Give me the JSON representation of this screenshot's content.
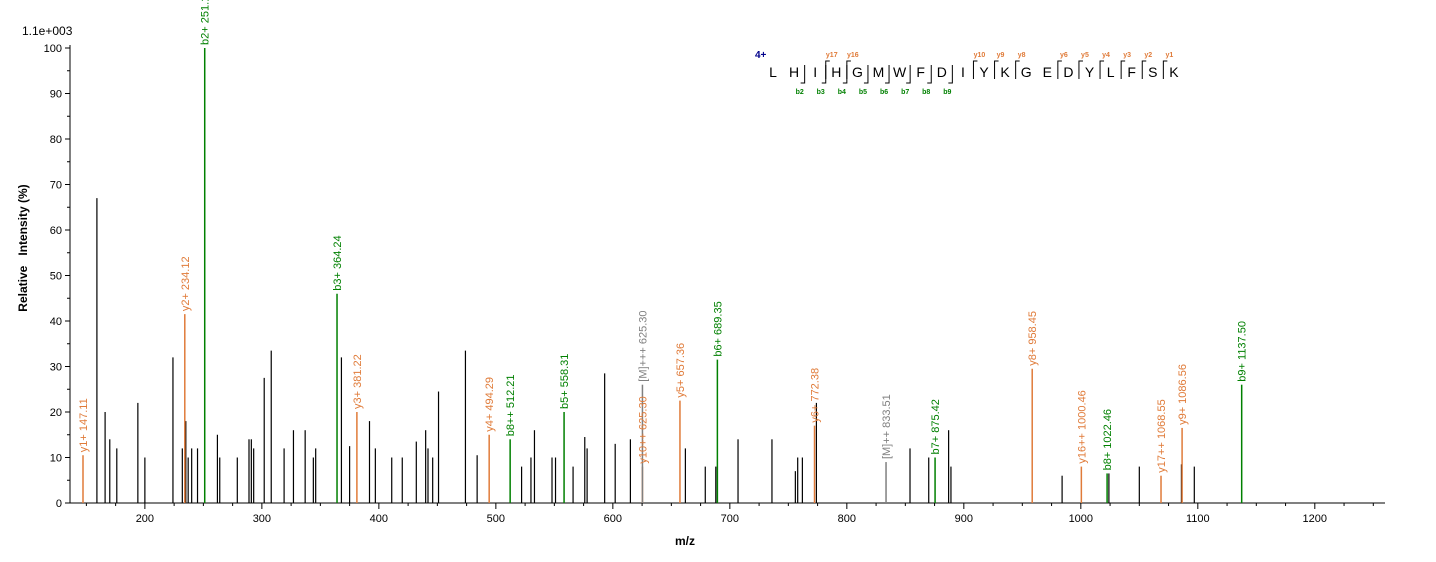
{
  "chart_data": {
    "type": "bar",
    "scale_label": "1.1e+003",
    "xlabel": "m/z",
    "ylabel": "Relative   Intensity (%)",
    "xlim": [
      136,
      1260
    ],
    "ylim": [
      0,
      100
    ],
    "x_ticks": [
      200,
      300,
      400,
      500,
      600,
      700,
      800,
      900,
      1000,
      1100,
      1200
    ],
    "y_ticks": [
      0,
      10,
      20,
      30,
      40,
      50,
      60,
      70,
      80,
      90,
      100
    ],
    "colors": {
      "b": "#008000",
      "y": "#e07b39",
      "other": "#808080",
      "unassigned": "#000000"
    },
    "annotated_peaks": [
      {
        "mz": 147.11,
        "intensity": 10.5,
        "label": "y1+ 147.11",
        "ion": "y"
      },
      {
        "mz": 234.12,
        "intensity": 41.5,
        "label": "y2+ 234.12",
        "ion": "y"
      },
      {
        "mz": 251.15,
        "intensity": 100,
        "label": "b2+ 251.15",
        "ion": "b"
      },
      {
        "mz": 364.24,
        "intensity": 46,
        "label": "b3+ 364.24",
        "ion": "b"
      },
      {
        "mz": 381.22,
        "intensity": 20,
        "label": "y3+ 381.22",
        "ion": "y"
      },
      {
        "mz": 494.29,
        "intensity": 15,
        "label": "y4+ 494.29",
        "ion": "y"
      },
      {
        "mz": 512.21,
        "intensity": 14,
        "label": "b8++ 512.21",
        "ion": "b"
      },
      {
        "mz": 558.31,
        "intensity": 20,
        "label": "b5+ 558.31",
        "ion": "b"
      },
      {
        "mz": 625.3,
        "intensity": 8,
        "label": "y10++ 625.30",
        "ion": "y"
      },
      {
        "mz": 625.3,
        "intensity": 26,
        "label": "[M]+++ 625.30",
        "ion": "other"
      },
      {
        "mz": 657.36,
        "intensity": 22.5,
        "label": "y5+ 657.36",
        "ion": "y"
      },
      {
        "mz": 689.35,
        "intensity": 31.5,
        "label": "b6+ 689.35",
        "ion": "b"
      },
      {
        "mz": 772.38,
        "intensity": 17,
        "label": "y6+ 772.38",
        "ion": "y"
      },
      {
        "mz": 833.51,
        "intensity": 9,
        "label": "[M]++ 833.51",
        "ion": "other"
      },
      {
        "mz": 875.42,
        "intensity": 10,
        "label": "b7+ 875.42",
        "ion": "b"
      },
      {
        "mz": 958.45,
        "intensity": 29.5,
        "label": "y8+ 958.45",
        "ion": "y"
      },
      {
        "mz": 1000.46,
        "intensity": 8,
        "label": "y16++ 1000.46",
        "ion": "y"
      },
      {
        "mz": 1022.46,
        "intensity": 6.5,
        "label": "b8+ 1022.46",
        "ion": "b"
      },
      {
        "mz": 1068.55,
        "intensity": 6,
        "label": "y17++ 1068.55",
        "ion": "y"
      },
      {
        "mz": 1086.56,
        "intensity": 16.5,
        "label": "y9+ 1086.56",
        "ion": "y"
      },
      {
        "mz": 1137.5,
        "intensity": 26,
        "label": "b9+ 1137.50",
        "ion": "b"
      }
    ],
    "unassigned_peaks": [
      {
        "mz": 159,
        "intensity": 67
      },
      {
        "mz": 166,
        "intensity": 20
      },
      {
        "mz": 170,
        "intensity": 14
      },
      {
        "mz": 176,
        "intensity": 12
      },
      {
        "mz": 194,
        "intensity": 22
      },
      {
        "mz": 200,
        "intensity": 10
      },
      {
        "mz": 224,
        "intensity": 32
      },
      {
        "mz": 232,
        "intensity": 12
      },
      {
        "mz": 235,
        "intensity": 18
      },
      {
        "mz": 237,
        "intensity": 10
      },
      {
        "mz": 240,
        "intensity": 12
      },
      {
        "mz": 245,
        "intensity": 12
      },
      {
        "mz": 262,
        "intensity": 15
      },
      {
        "mz": 264,
        "intensity": 10
      },
      {
        "mz": 279,
        "intensity": 10
      },
      {
        "mz": 289,
        "intensity": 14
      },
      {
        "mz": 291,
        "intensity": 14
      },
      {
        "mz": 293,
        "intensity": 12
      },
      {
        "mz": 302,
        "intensity": 27.5
      },
      {
        "mz": 308,
        "intensity": 33.5
      },
      {
        "mz": 319,
        "intensity": 12
      },
      {
        "mz": 327,
        "intensity": 16
      },
      {
        "mz": 337,
        "intensity": 16
      },
      {
        "mz": 344,
        "intensity": 10
      },
      {
        "mz": 346,
        "intensity": 12
      },
      {
        "mz": 368,
        "intensity": 32
      },
      {
        "mz": 375,
        "intensity": 12.5
      },
      {
        "mz": 392,
        "intensity": 18
      },
      {
        "mz": 397,
        "intensity": 12
      },
      {
        "mz": 411,
        "intensity": 10
      },
      {
        "mz": 420,
        "intensity": 10
      },
      {
        "mz": 432,
        "intensity": 13.5
      },
      {
        "mz": 440,
        "intensity": 16
      },
      {
        "mz": 442,
        "intensity": 12
      },
      {
        "mz": 446,
        "intensity": 10
      },
      {
        "mz": 451,
        "intensity": 24.5
      },
      {
        "mz": 474,
        "intensity": 33.5
      },
      {
        "mz": 484,
        "intensity": 10.5
      },
      {
        "mz": 522,
        "intensity": 8
      },
      {
        "mz": 530,
        "intensity": 10
      },
      {
        "mz": 533,
        "intensity": 16
      },
      {
        "mz": 548,
        "intensity": 10
      },
      {
        "mz": 551,
        "intensity": 10
      },
      {
        "mz": 566,
        "intensity": 8
      },
      {
        "mz": 576,
        "intensity": 14.5
      },
      {
        "mz": 578,
        "intensity": 12
      },
      {
        "mz": 593,
        "intensity": 28.5
      },
      {
        "mz": 602,
        "intensity": 13
      },
      {
        "mz": 615,
        "intensity": 14
      },
      {
        "mz": 662,
        "intensity": 12
      },
      {
        "mz": 679,
        "intensity": 8
      },
      {
        "mz": 688,
        "intensity": 8
      },
      {
        "mz": 707,
        "intensity": 14
      },
      {
        "mz": 736,
        "intensity": 14
      },
      {
        "mz": 756,
        "intensity": 7
      },
      {
        "mz": 758,
        "intensity": 10
      },
      {
        "mz": 762,
        "intensity": 10
      },
      {
        "mz": 774,
        "intensity": 22
      },
      {
        "mz": 854,
        "intensity": 12
      },
      {
        "mz": 870,
        "intensity": 10
      },
      {
        "mz": 887,
        "intensity": 16
      },
      {
        "mz": 889,
        "intensity": 8
      },
      {
        "mz": 984,
        "intensity": 6
      },
      {
        "mz": 1024,
        "intensity": 6.5
      },
      {
        "mz": 1050,
        "intensity": 8
      },
      {
        "mz": 1086,
        "intensity": 8.5
      },
      {
        "mz": 1097,
        "intensity": 8
      }
    ],
    "sequence": {
      "charge": "4+",
      "residues": [
        "L",
        "H",
        "I",
        "H",
        "G",
        "M",
        "W",
        "F",
        "D",
        "I",
        "Y",
        "K",
        "G",
        "E",
        "D",
        "Y",
        "L",
        "F",
        "S",
        "K"
      ],
      "b_ions": [
        {
          "label": "b2",
          "after": 1
        },
        {
          "label": "b3",
          "after": 2
        },
        {
          "label": "b4",
          "after": 3
        },
        {
          "label": "b5",
          "after": 4
        },
        {
          "label": "b6",
          "after": 5
        },
        {
          "label": "b7",
          "after": 6
        },
        {
          "label": "b8",
          "after": 7
        },
        {
          "label": "b9",
          "after": 8
        }
      ],
      "y_ions": [
        {
          "label": "y17",
          "after": 2
        },
        {
          "label": "y16",
          "after": 3
        },
        {
          "label": "y10",
          "after": 9
        },
        {
          "label": "y9",
          "after": 10
        },
        {
          "label": "y8",
          "after": 11
        },
        {
          "label": "y6",
          "after": 13
        },
        {
          "label": "y5",
          "after": 14
        },
        {
          "label": "y4",
          "after": 15
        },
        {
          "label": "y3",
          "after": 16
        },
        {
          "label": "y2",
          "after": 17
        },
        {
          "label": "y1",
          "after": 18
        }
      ]
    }
  }
}
